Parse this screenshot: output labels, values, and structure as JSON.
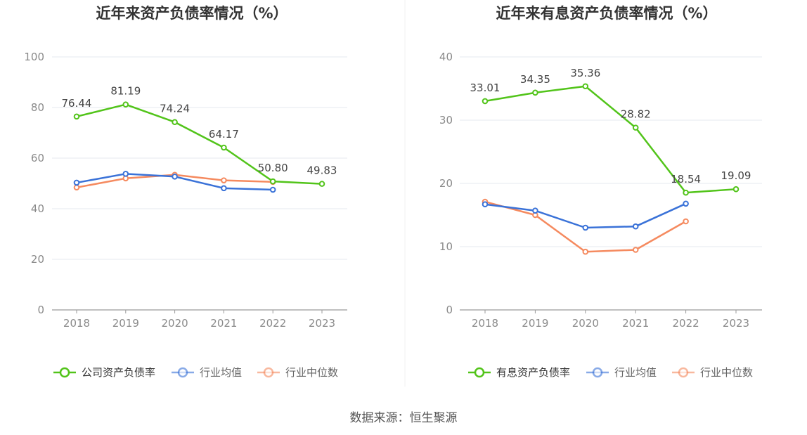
{
  "chart_data": [
    {
      "type": "line",
      "title": "近年来资产负债率情况（%）",
      "categories": [
        "2018",
        "2019",
        "2020",
        "2021",
        "2022",
        "2023"
      ],
      "ylim": [
        0,
        100
      ],
      "yticks": [
        "0",
        "20",
        "40",
        "60",
        "80",
        "100"
      ],
      "series": [
        {
          "name": "公司资产负债率",
          "color": "#52c41a",
          "values": [
            76.44,
            81.19,
            74.24,
            64.17,
            50.8,
            49.83
          ],
          "labels": [
            "76.44",
            "81.19",
            "74.24",
            "64.17",
            "50.80",
            "49.83"
          ]
        },
        {
          "name": "行业均值",
          "color": "#3a72d8",
          "values": [
            50.3,
            53.8,
            52.7,
            48.1,
            47.5,
            null
          ]
        },
        {
          "name": "行业中位数",
          "color": "#f58a5f",
          "values": [
            48.4,
            52.0,
            53.4,
            51.2,
            50.6,
            null
          ]
        }
      ]
    },
    {
      "type": "line",
      "title": "近年来有息资产负债率情况（%）",
      "categories": [
        "2018",
        "2019",
        "2020",
        "2021",
        "2022",
        "2023"
      ],
      "ylim": [
        0,
        40
      ],
      "yticks": [
        "0",
        "10",
        "20",
        "30",
        "40"
      ],
      "series": [
        {
          "name": "有息资产负债率",
          "color": "#52c41a",
          "values": [
            33.01,
            34.35,
            35.36,
            28.82,
            18.54,
            19.09
          ],
          "labels": [
            "33.01",
            "34.35",
            "35.36",
            "28.82",
            "18.54",
            "19.09"
          ]
        },
        {
          "name": "行业均值",
          "color": "#3a72d8",
          "values": [
            16.7,
            15.7,
            13.0,
            13.2,
            16.8,
            null
          ]
        },
        {
          "name": "行业中位数",
          "color": "#f58a5f",
          "values": [
            17.1,
            15.0,
            9.2,
            9.5,
            14.0,
            null
          ]
        }
      ]
    }
  ],
  "footer": {
    "source": "数据来源：恒生聚源"
  },
  "colors": {
    "grid": "#e6e8ef",
    "axis": "#9a9a9a",
    "legend_text": "#666666",
    "legend_text_primary": "#333333"
  }
}
